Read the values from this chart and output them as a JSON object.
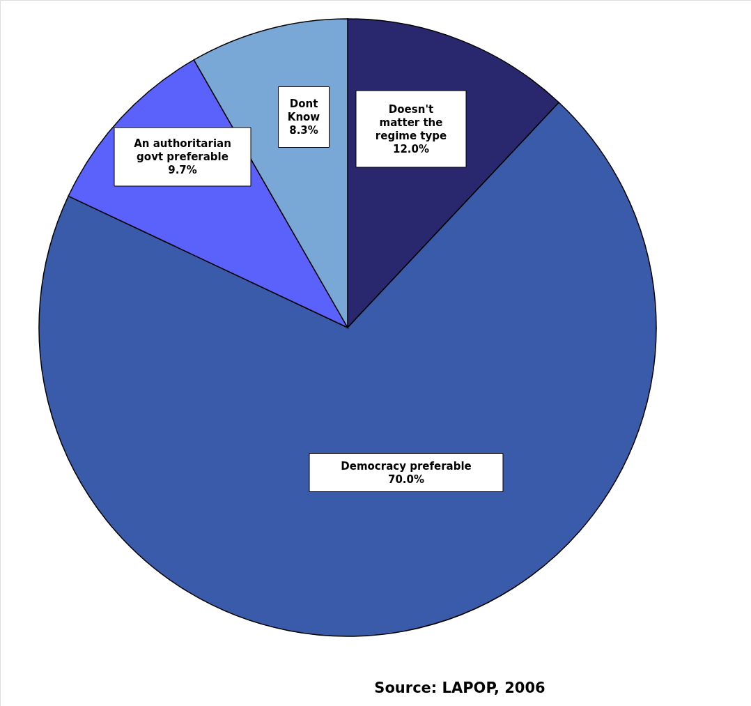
{
  "chart_data": {
    "type": "pie",
    "categories": [
      "Doesn't matter the regime type",
      "Democracy preferable",
      "An authoritarian govt  preferable",
      "Dont Know"
    ],
    "values": [
      12.0,
      70.0,
      9.7,
      8.3
    ],
    "value_labels": [
      "12.0%",
      "70.0%",
      "9.7%",
      "8.3%"
    ],
    "colors": [
      "#29286f",
      "#3a5aaa",
      "#5a62fb",
      "#7aa8d6"
    ],
    "legend": false,
    "annotations": [
      "Source: LAPOP, 2006"
    ]
  }
}
